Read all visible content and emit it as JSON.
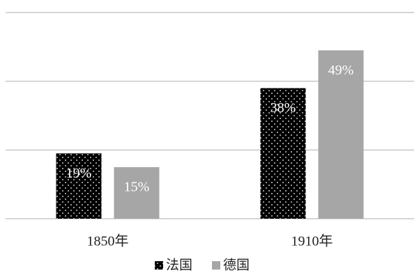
{
  "chart_data": {
    "type": "bar",
    "categories": [
      "1850年",
      "1910年"
    ],
    "series": [
      {
        "name": "法国",
        "color": "#000000",
        "pattern": "dots",
        "values": [
          19,
          38
        ],
        "value_labels": [
          "19%",
          "38%"
        ]
      },
      {
        "name": "德国",
        "color": "#a6a6a6",
        "values": [
          15,
          49
        ],
        "value_labels": [
          "15%",
          "49%"
        ]
      }
    ],
    "ylim": [
      0,
      60
    ],
    "yticks": [
      0,
      20,
      40,
      60
    ],
    "grid": true,
    "legend": "bottom"
  }
}
